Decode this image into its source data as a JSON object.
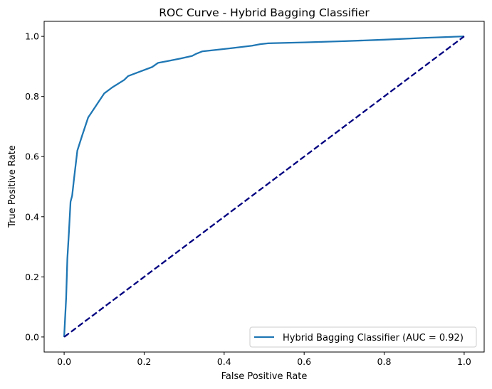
{
  "chart_data": {
    "type": "line",
    "title": "ROC Curve - Hybrid Bagging Classifier",
    "xlabel": "False Positive Rate",
    "ylabel": "True Positive Rate",
    "xlim": [
      -0.05,
      1.05
    ],
    "ylim": [
      -0.05,
      1.05
    ],
    "xticks": [
      0.0,
      0.2,
      0.4,
      0.6,
      0.8,
      1.0
    ],
    "yticks": [
      0.0,
      0.2,
      0.4,
      0.6,
      0.8,
      1.0
    ],
    "xtick_labels": [
      "0.0",
      "0.2",
      "0.4",
      "0.6",
      "0.8",
      "1.0"
    ],
    "ytick_labels": [
      "0.0",
      "0.2",
      "0.4",
      "0.6",
      "0.8",
      "1.0"
    ],
    "grid": false,
    "legend_position": "lower right",
    "series": [
      {
        "name": "Hybrid Bagging Classifier (AUC = 0.92)",
        "color": "#1f77b4",
        "style": "solid",
        "x": [
          0.0,
          0.005,
          0.008,
          0.012,
          0.016,
          0.02,
          0.025,
          0.033,
          0.045,
          0.06,
          0.08,
          0.1,
          0.12,
          0.15,
          0.16,
          0.19,
          0.22,
          0.235,
          0.26,
          0.29,
          0.32,
          0.33,
          0.345,
          0.38,
          0.42,
          0.47,
          0.49,
          0.51,
          0.6,
          0.7,
          0.8,
          0.9,
          1.0
        ],
        "y": [
          0.0,
          0.13,
          0.26,
          0.35,
          0.45,
          0.47,
          0.53,
          0.62,
          0.67,
          0.73,
          0.77,
          0.81,
          0.83,
          0.855,
          0.868,
          0.883,
          0.898,
          0.912,
          0.918,
          0.926,
          0.935,
          0.942,
          0.95,
          0.955,
          0.961,
          0.969,
          0.974,
          0.977,
          0.98,
          0.984,
          0.989,
          0.995,
          1.0
        ]
      },
      {
        "color": "#000080",
        "style": "dashed",
        "x": [
          0.0,
          1.0
        ],
        "y": [
          0.0,
          1.0
        ]
      }
    ]
  }
}
